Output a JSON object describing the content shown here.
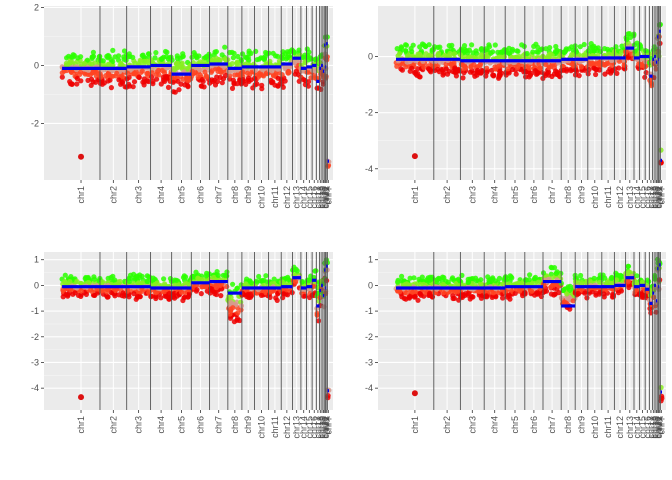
{
  "chart_data": [
    {
      "type": "scatter",
      "panel": "top-left",
      "xlabel": "",
      "ylabel": "",
      "x_tick_labels": [
        "chr1",
        "chr2",
        "chr3",
        "chr4",
        "chr5",
        "chr6",
        "chr7",
        "chr8",
        "chr9",
        "chr10",
        "chr11",
        "chr12",
        "chr13",
        "chr14",
        "chr15",
        "chr16",
        "chr17",
        "chr18",
        "chr19",
        "chr20",
        "chr21",
        "chr22",
        "chrX",
        "chrY"
      ],
      "y_ticks": [
        2,
        0,
        -2
      ],
      "y_tick_labels": [
        "2",
        "0",
        "-2"
      ],
      "ylim": [
        -3.95,
        2.05
      ],
      "grid": true,
      "segments_mean": [
        -0.1,
        -0.1,
        -0.05,
        0.0,
        -0.3,
        0.0,
        0.05,
        -0.1,
        -0.05,
        -0.05,
        -0.05,
        0.05,
        0.25,
        -0.1,
        -0.05,
        0.0,
        -0.55,
        -0.1,
        0.0,
        -0.2,
        0.7,
        -0.05,
        0.75,
        -3.3
      ],
      "band_top": [
        0.6,
        0.55,
        0.6,
        0.6,
        0.55,
        0.6,
        0.7,
        0.6,
        0.6,
        0.6,
        0.6,
        0.65,
        0.85,
        0.6,
        0.6,
        0.65,
        0.5,
        0.6,
        0.7,
        0.6,
        1.2,
        0.75,
        1.5,
        -2.7
      ],
      "band_bottom": [
        -0.8,
        -0.85,
        -0.8,
        -0.8,
        -1.0,
        -0.85,
        -0.75,
        -0.9,
        -0.85,
        -0.85,
        -0.85,
        -0.8,
        -0.6,
        -0.95,
        -0.9,
        -0.95,
        -1.2,
        -1.0,
        -0.9,
        -1.0,
        -0.4,
        -0.95,
        -0.6,
        -3.9
      ],
      "outliers": [
        {
          "chr": "chr1",
          "y": -3.15
        }
      ]
    },
    {
      "type": "scatter",
      "panel": "top-right",
      "xlabel": "",
      "ylabel": "",
      "x_tick_labels": [
        "chr1",
        "chr2",
        "chr3",
        "chr4",
        "chr5",
        "chr6",
        "chr7",
        "chr8",
        "chr9",
        "chr10",
        "chr11",
        "chr12",
        "chr13",
        "chr14",
        "chr15",
        "chr16",
        "chr17",
        "chr18",
        "chr19",
        "chr20",
        "chr21",
        "chr22",
        "chrX",
        "chrY"
      ],
      "y_ticks": [
        0,
        -2,
        -4
      ],
      "y_tick_labels": [
        "0",
        "-2",
        "-4"
      ],
      "ylim": [
        -4.4,
        1.8
      ],
      "grid": true,
      "segments_mean": [
        -0.1,
        -0.1,
        -0.15,
        -0.15,
        -0.15,
        -0.15,
        -0.15,
        -0.1,
        -0.1,
        -0.05,
        -0.05,
        -0.05,
        0.3,
        -0.05,
        0.0,
        0.0,
        -0.7,
        -0.1,
        0.0,
        -0.2,
        0.7,
        -0.1,
        0.9,
        -3.7
      ],
      "band_top": [
        0.5,
        0.5,
        0.5,
        0.5,
        0.5,
        0.5,
        0.5,
        0.55,
        0.55,
        0.55,
        0.55,
        0.6,
        0.95,
        0.55,
        0.6,
        0.6,
        0.3,
        0.55,
        0.7,
        0.55,
        1.3,
        0.6,
        1.6,
        -2.8
      ],
      "band_bottom": [
        -0.8,
        -0.8,
        -0.85,
        -0.85,
        -0.85,
        -0.85,
        -0.85,
        -0.8,
        -0.8,
        -0.75,
        -0.75,
        -0.75,
        -0.3,
        -0.75,
        -0.8,
        -0.85,
        -1.7,
        -0.95,
        -0.8,
        -1.0,
        0.0,
        -0.85,
        0.0,
        -4.1
      ],
      "outliers": [
        {
          "chr": "chr1",
          "y": -3.55
        }
      ]
    },
    {
      "type": "scatter",
      "panel": "bottom-left",
      "xlabel": "",
      "ylabel": "",
      "x_tick_labels": [
        "chr1",
        "chr2",
        "chr3",
        "chr4",
        "chr5",
        "chr6",
        "chr7",
        "chr8",
        "chr9",
        "chr10",
        "chr11",
        "chr12",
        "chr13",
        "chr14",
        "chr15",
        "chr16",
        "chr17",
        "chr18",
        "chr19",
        "chr20",
        "chr21",
        "chr22",
        "chrX",
        "chrY"
      ],
      "y_ticks": [
        1,
        0,
        -1,
        -2,
        -3,
        -4
      ],
      "y_tick_labels": [
        "1",
        "0",
        "-1",
        "-2",
        "-3",
        "-4"
      ],
      "ylim": [
        -4.85,
        1.3
      ],
      "grid": true,
      "segments_mean": [
        -0.05,
        -0.05,
        -0.05,
        -0.1,
        -0.1,
        0.1,
        0.15,
        -0.3,
        -0.1,
        -0.1,
        -0.1,
        -0.05,
        0.3,
        -0.1,
        -0.05,
        0.2,
        -0.8,
        -0.2,
        0.0,
        -0.4,
        0.6,
        -0.1,
        0.75,
        -4.1
      ],
      "band_top": [
        0.45,
        0.45,
        0.45,
        0.4,
        0.4,
        0.6,
        0.7,
        0.2,
        0.35,
        0.4,
        0.4,
        0.45,
        0.8,
        0.4,
        0.45,
        0.7,
        0.2,
        0.4,
        0.6,
        0.3,
        1.05,
        0.55,
        1.1,
        -3.7
      ],
      "band_bottom": [
        -0.55,
        -0.55,
        -0.6,
        -0.6,
        -0.6,
        -0.4,
        -0.45,
        -1.7,
        -0.6,
        -0.65,
        -0.6,
        -0.55,
        -0.25,
        -0.65,
        -0.7,
        -0.6,
        -1.9,
        -1.1,
        -0.7,
        -1.8,
        0.0,
        -0.9,
        0.0,
        -4.5
      ],
      "outliers": [
        {
          "chr": "chr1",
          "y": -4.35
        }
      ]
    },
    {
      "type": "scatter",
      "panel": "bottom-right",
      "xlabel": "",
      "ylabel": "",
      "x_tick_labels": [
        "chr1",
        "chr2",
        "chr3",
        "chr4",
        "chr5",
        "chr6",
        "chr7",
        "chr8",
        "chr9",
        "chr10",
        "chr11",
        "chr12",
        "chr13",
        "chr14",
        "chr15",
        "chr16",
        "chr17",
        "chr18",
        "chr19",
        "chr20",
        "chr21",
        "chr22",
        "chrX",
        "chrY"
      ],
      "y_ticks": [
        1,
        0,
        -1,
        -2,
        -3,
        -4
      ],
      "y_tick_labels": [
        "1",
        "0",
        "-1",
        "-2",
        "-3",
        "-4"
      ],
      "ylim": [
        -4.85,
        1.3
      ],
      "grid": true,
      "segments_mean": [
        -0.1,
        -0.1,
        -0.1,
        -0.1,
        -0.05,
        -0.05,
        0.15,
        -0.8,
        -0.05,
        -0.05,
        -0.05,
        0.0,
        0.3,
        -0.05,
        0.0,
        -0.15,
        -0.7,
        -0.3,
        0.0,
        -0.6,
        0.65,
        -0.05,
        0.8,
        -4.15
      ],
      "band_top": [
        0.4,
        0.4,
        0.4,
        0.4,
        0.45,
        0.45,
        0.8,
        0.2,
        0.5,
        0.5,
        0.5,
        0.55,
        0.85,
        0.5,
        0.5,
        0.45,
        0.3,
        0.35,
        0.6,
        0.1,
        1.2,
        0.6,
        1.15,
        -3.7
      ],
      "band_bottom": [
        -0.6,
        -0.6,
        -0.6,
        -0.6,
        -0.6,
        -0.55,
        -0.45,
        -1.2,
        -0.55,
        -0.55,
        -0.55,
        -0.5,
        -0.2,
        -0.6,
        -0.6,
        -0.7,
        -1.4,
        -1.0,
        -0.7,
        -1.5,
        0.0,
        -0.8,
        0.1,
        -4.55
      ],
      "outliers": [
        {
          "chr": "chr1",
          "y": -4.2
        }
      ]
    }
  ]
}
